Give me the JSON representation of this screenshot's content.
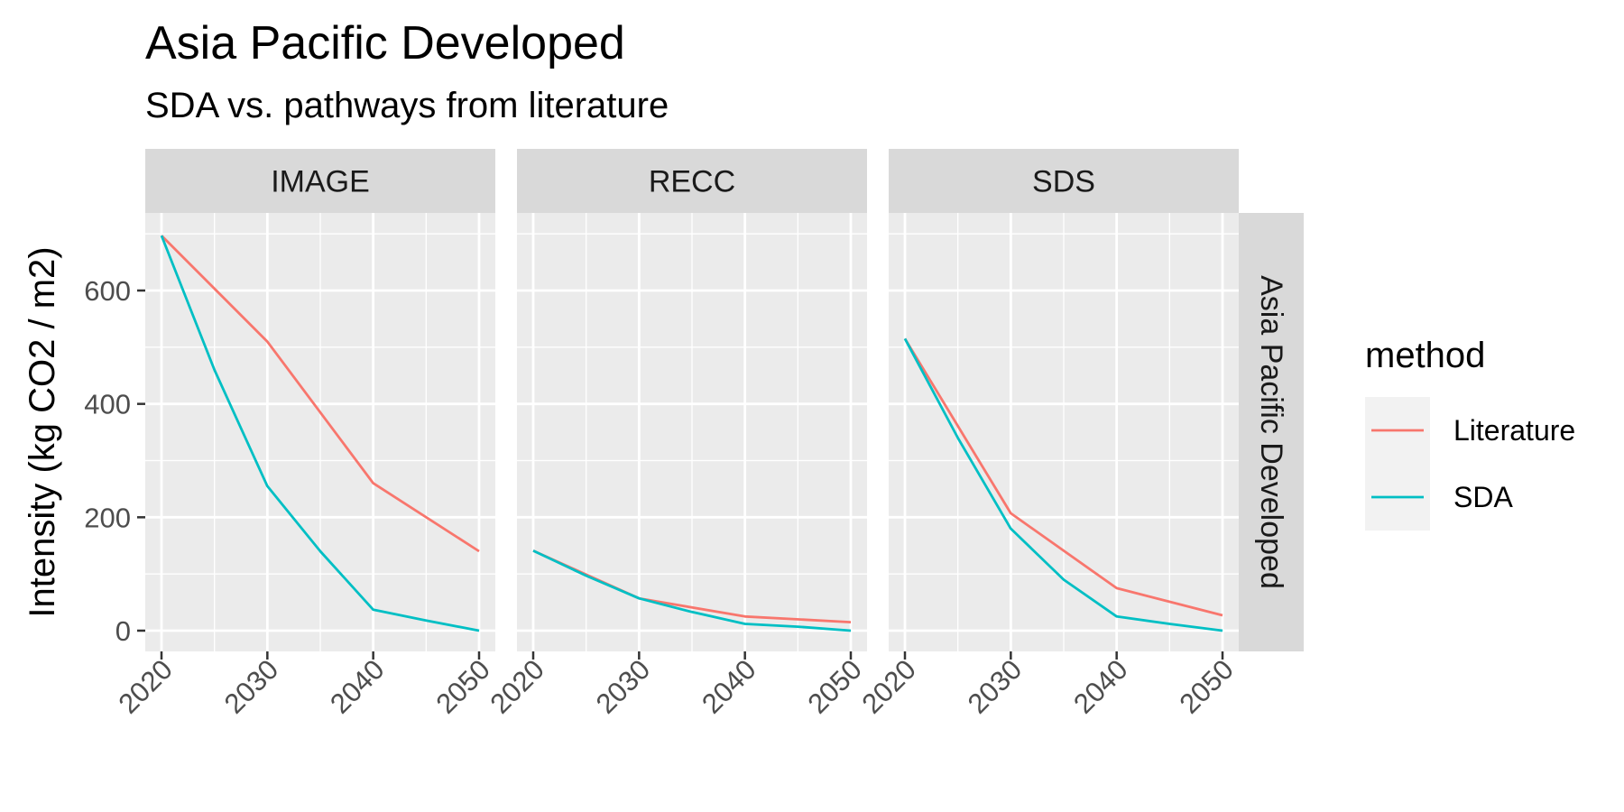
{
  "chart": {
    "title": "Asia Pacific Developed",
    "subtitle": "SDA vs. pathways from literature",
    "ylabel": "Intensity (kg CO2 / m2)",
    "legend_title": "method",
    "legend": [
      "Literature",
      "SDA"
    ],
    "row_strip": "Asia Pacific Developed"
  },
  "colors": {
    "Literature": "#F8766D",
    "SDA": "#00BFC4",
    "panel_bg": "#EBEBEB",
    "strip_bg": "#D9D9D9",
    "legend_bg": "#F2F2F2"
  },
  "chart_data": {
    "type": "line",
    "facets": [
      "IMAGE",
      "RECC",
      "SDS"
    ],
    "row_facet": "Asia Pacific Developed",
    "xlim": [
      2020,
      2050
    ],
    "ylim": [
      0,
      700
    ],
    "x_ticks": [
      2020,
      2030,
      2040,
      2050
    ],
    "y_ticks": [
      0,
      200,
      400,
      600
    ],
    "grid": true,
    "legend_position": "right",
    "panels": [
      {
        "facet": "IMAGE",
        "series": [
          {
            "name": "Literature",
            "x": [
              2020,
              2030,
              2040,
              2050
            ],
            "y": [
              697,
              510,
              260,
              140
            ]
          },
          {
            "name": "SDA",
            "x": [
              2020,
              2025,
              2030,
              2035,
              2040,
              2045,
              2050
            ],
            "y": [
              697,
              460,
              255,
              140,
              37,
              18,
              0
            ]
          }
        ]
      },
      {
        "facet": "RECC",
        "series": [
          {
            "name": "Literature",
            "x": [
              2020,
              2030,
              2040,
              2050
            ],
            "y": [
              141,
              57,
              25,
              15
            ]
          },
          {
            "name": "SDA",
            "x": [
              2020,
              2025,
              2030,
              2035,
              2040,
              2045,
              2050
            ],
            "y": [
              141,
              97,
              57,
              33,
              12,
              7,
              0
            ]
          }
        ]
      },
      {
        "facet": "SDS",
        "series": [
          {
            "name": "Literature",
            "x": [
              2020,
              2030,
              2040,
              2050
            ],
            "y": [
              515,
              207,
              75,
              27
            ]
          },
          {
            "name": "SDA",
            "x": [
              2020,
              2025,
              2030,
              2035,
              2040,
              2045,
              2050
            ],
            "y": [
              515,
              340,
              180,
              90,
              25,
              12,
              0
            ]
          }
        ]
      }
    ]
  }
}
